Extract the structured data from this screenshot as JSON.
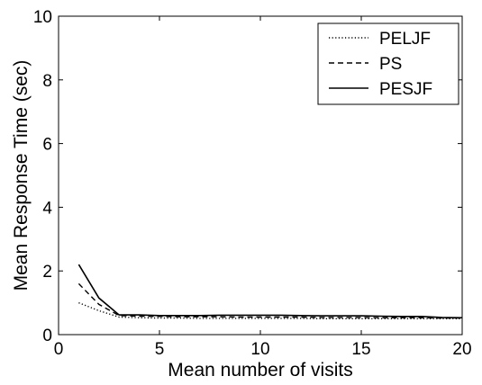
{
  "chart_data": {
    "type": "line",
    "xlabel": "Mean number of visits",
    "ylabel": "Mean Response Time (sec)",
    "xlim": [
      0,
      20
    ],
    "ylim": [
      0,
      10
    ],
    "xticks": [
      0,
      5,
      10,
      15,
      20
    ],
    "yticks": [
      0,
      2,
      4,
      6,
      8,
      10
    ],
    "grid": false,
    "legend_position": "top-right",
    "series": [
      {
        "name": "PELJF",
        "style": "dotted",
        "color": "#000000",
        "x": [
          1,
          2,
          3,
          4,
          5,
          6,
          7,
          8,
          9,
          10,
          11,
          12,
          13,
          14,
          15,
          16,
          17,
          18,
          19,
          20
        ],
        "y": [
          1.0,
          0.75,
          0.55,
          0.53,
          0.52,
          0.52,
          0.51,
          0.51,
          0.51,
          0.51,
          0.51,
          0.51,
          0.5,
          0.5,
          0.5,
          0.5,
          0.5,
          0.5,
          0.5,
          0.5
        ]
      },
      {
        "name": "PS",
        "style": "dashed",
        "color": "#000000",
        "x": [
          1,
          2,
          3,
          4,
          5,
          6,
          7,
          8,
          9,
          10,
          11,
          12,
          13,
          14,
          15,
          16,
          17,
          18,
          19,
          20
        ],
        "y": [
          1.6,
          0.95,
          0.6,
          0.58,
          0.57,
          0.56,
          0.56,
          0.56,
          0.55,
          0.55,
          0.55,
          0.55,
          0.54,
          0.54,
          0.54,
          0.53,
          0.53,
          0.53,
          0.52,
          0.52
        ]
      },
      {
        "name": "PESJF",
        "style": "solid",
        "color": "#000000",
        "x": [
          1,
          2,
          3,
          4,
          5,
          6,
          7,
          8,
          9,
          10,
          11,
          12,
          13,
          14,
          15,
          16,
          17,
          18,
          19,
          20
        ],
        "y": [
          2.2,
          1.15,
          0.62,
          0.62,
          0.6,
          0.6,
          0.6,
          0.61,
          0.61,
          0.61,
          0.61,
          0.6,
          0.59,
          0.59,
          0.59,
          0.58,
          0.57,
          0.57,
          0.54,
          0.53
        ]
      }
    ]
  }
}
